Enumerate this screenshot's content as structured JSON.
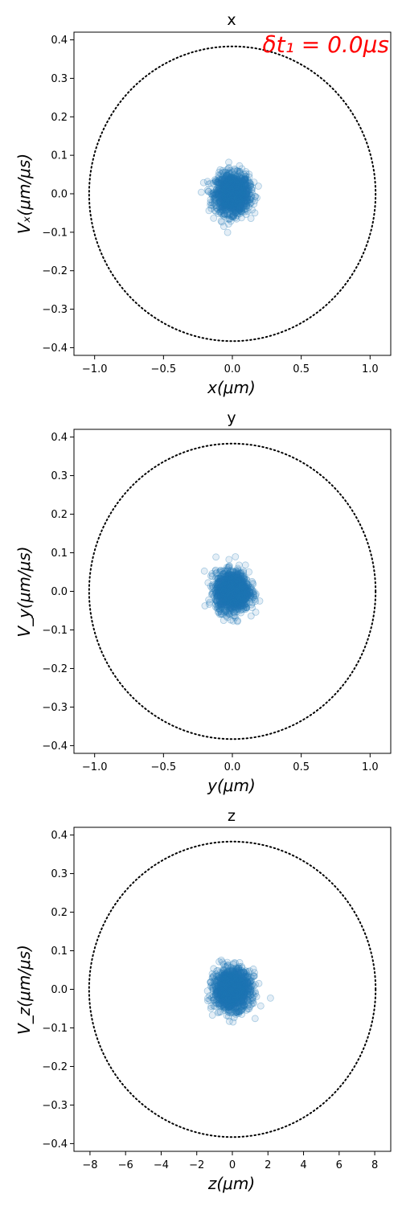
{
  "chart_data": [
    {
      "type": "scatter",
      "title": "x",
      "annotation": "δt₁ = 0.0μs",
      "xlabel": "x(μm)",
      "ylabel": "Vₓ(μm/μs)",
      "xlim": [
        -1.15,
        1.15
      ],
      "ylim": [
        -0.42,
        0.42
      ],
      "xticks": [
        -1.0,
        -0.5,
        0.0,
        0.5,
        1.0
      ],
      "xtick_labels": [
        "−1.0",
        "−0.5",
        "0.0",
        "0.5",
        "1.0"
      ],
      "yticks": [
        -0.4,
        -0.3,
        -0.2,
        -0.1,
        0.0,
        0.1,
        0.2,
        0.3,
        0.4
      ],
      "ytick_labels": [
        "−0.4",
        "−0.3",
        "−0.2",
        "−0.1",
        "0.0",
        "0.1",
        "0.2",
        "0.3",
        "0.4"
      ],
      "grid": false,
      "boundary": {
        "type": "ellipse",
        "style": "dotted",
        "color": "#000000",
        "x_radius": 1.04,
        "y_radius": 0.383
      },
      "cloud": {
        "color": "#1f77b4",
        "x_center": 0.0,
        "y_center": 0.0,
        "x_sigma": 0.06,
        "y_sigma": 0.025,
        "n_points": 1500
      }
    },
    {
      "type": "scatter",
      "title": "y",
      "xlabel": "y(μm)",
      "ylabel": "V_y(μm/μs)",
      "xlim": [
        -1.15,
        1.15
      ],
      "ylim": [
        -0.42,
        0.42
      ],
      "xticks": [
        -1.0,
        -0.5,
        0.0,
        0.5,
        1.0
      ],
      "xtick_labels": [
        "−1.0",
        "−0.5",
        "0.0",
        "0.5",
        "1.0"
      ],
      "yticks": [
        -0.4,
        -0.3,
        -0.2,
        -0.1,
        0.0,
        0.1,
        0.2,
        0.3,
        0.4
      ],
      "ytick_labels": [
        "−0.4",
        "−0.3",
        "−0.2",
        "−0.1",
        "0.0",
        "0.1",
        "0.2",
        "0.3",
        "0.4"
      ],
      "grid": false,
      "boundary": {
        "type": "ellipse",
        "style": "dotted",
        "color": "#000000",
        "x_radius": 1.04,
        "y_radius": 0.383
      },
      "cloud": {
        "color": "#1f77b4",
        "x_center": 0.0,
        "y_center": 0.0,
        "x_sigma": 0.06,
        "y_sigma": 0.025,
        "n_points": 1500
      }
    },
    {
      "type": "scatter",
      "title": "z",
      "xlabel": "z(μm)",
      "ylabel": "V_z(μm/μs)",
      "xlim": [
        -8.9,
        8.9
      ],
      "ylim": [
        -0.42,
        0.42
      ],
      "xticks": [
        -8,
        -6,
        -4,
        -2,
        0,
        2,
        4,
        6,
        8
      ],
      "xtick_labels": [
        "−8",
        "−6",
        "−4",
        "−2",
        "0",
        "2",
        "4",
        "6",
        "8"
      ],
      "yticks": [
        -0.4,
        -0.3,
        -0.2,
        -0.1,
        0.0,
        0.1,
        0.2,
        0.3,
        0.4
      ],
      "ytick_labels": [
        "−0.4",
        "−0.3",
        "−0.2",
        "−0.1",
        "0.0",
        "0.1",
        "0.2",
        "0.3",
        "0.4"
      ],
      "grid": false,
      "boundary": {
        "type": "ellipse",
        "style": "dotted",
        "color": "#000000",
        "x_radius": 8.05,
        "y_radius": 0.383
      },
      "cloud": {
        "color": "#1f77b4",
        "x_center": 0.0,
        "y_center": 0.0,
        "x_sigma": 0.5,
        "y_sigma": 0.025,
        "n_points": 1500
      }
    }
  ]
}
